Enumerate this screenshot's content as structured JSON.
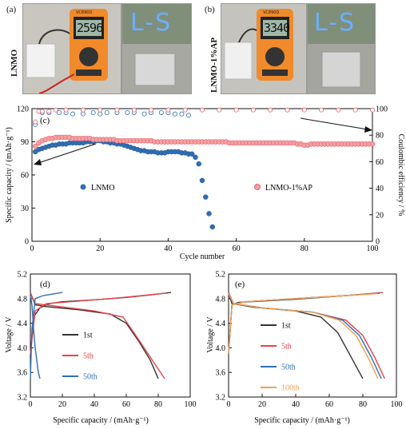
{
  "panel_a": {
    "label": "(a)",
    "side_label": "LNMO",
    "meter_reading": "2596",
    "meter_brand": "VC890D",
    "led_text": "L-S"
  },
  "panel_b": {
    "label": "(b)",
    "side_label": "LNMO-1%AP",
    "meter_reading": "3340",
    "meter_brand": "VC890D",
    "led_text": "L-S"
  },
  "panel_c": {
    "label": "(c)",
    "xlabel": "Cycle number",
    "ylabel_left": "Specific capacity / (mAh·g⁻¹)",
    "ylabel_right": "Coulombic efficiency / %",
    "legend_lnmo": "LNMO",
    "legend_ap": "LNMO-1%AP",
    "x_ticks": [
      "0",
      "20",
      "40",
      "60",
      "80",
      "100"
    ],
    "y_left_ticks": [
      "0",
      "30",
      "60",
      "90",
      "120"
    ],
    "y_right_ticks": [
      "0",
      "20",
      "40",
      "60",
      "80",
      "100"
    ],
    "colors": {
      "lnmo": "#2f6fb5",
      "ap": "#e8646a"
    }
  },
  "panel_d": {
    "label": "(d)",
    "xlabel": "Specific capacity / (mAh·g⁻¹)",
    "ylabel": "Voltage / V",
    "x_ticks": [
      "0",
      "20",
      "40",
      "60",
      "80",
      "100"
    ],
    "y_ticks": [
      "3.2",
      "3.6",
      "4.0",
      "4.4",
      "4.8",
      "5.2"
    ],
    "legend": [
      {
        "label": "1st",
        "color": "#333333"
      },
      {
        "label": "5th",
        "color": "#e8434b"
      },
      {
        "label": "50th",
        "color": "#2f6fb5"
      }
    ]
  },
  "panel_e": {
    "label": "(e)",
    "xlabel": "Specific capacity / (mAh·g⁻¹)",
    "ylabel": "Voltage / V",
    "x_ticks": [
      "0",
      "20",
      "40",
      "60",
      "80",
      "100"
    ],
    "y_ticks": [
      "3.2",
      "3.6",
      "4.0",
      "4.4",
      "4.8",
      "5.2"
    ],
    "legend": [
      {
        "label": "1st",
        "color": "#333333"
      },
      {
        "label": "5th",
        "color": "#e8434b"
      },
      {
        "label": "50th",
        "color": "#2f6fb5"
      },
      {
        "label": "100th",
        "color": "#f0a050"
      }
    ]
  },
  "chart_data": [
    {
      "type": "scatter",
      "id": "cycling",
      "xlabel": "Cycle number",
      "ylabel": "Specific capacity / (mAh·g⁻¹)",
      "y2label": "Coulombic efficiency / %",
      "xlim": [
        0,
        100
      ],
      "ylim": [
        0,
        120
      ],
      "y2lim": [
        0,
        100
      ],
      "series": [
        {
          "name": "LNMO",
          "axis": "left",
          "x": [
            1,
            2,
            3,
            4,
            5,
            6,
            7,
            8,
            9,
            10,
            11,
            12,
            13,
            14,
            15,
            16,
            17,
            18,
            19,
            20,
            21,
            22,
            23,
            24,
            25,
            26,
            27,
            28,
            29,
            30,
            31,
            32,
            33,
            34,
            35,
            36,
            37,
            38,
            39,
            40,
            41,
            42,
            43,
            44,
            45,
            46,
            47,
            48,
            49,
            50,
            51,
            52,
            53
          ],
          "y": [
            81,
            83,
            84,
            85,
            86,
            87,
            87,
            88,
            88,
            88,
            89,
            89,
            89,
            89,
            89,
            90,
            90,
            90,
            91,
            91,
            90,
            90,
            89,
            89,
            88,
            88,
            87,
            86,
            85,
            84,
            83,
            82,
            82,
            81,
            81,
            81,
            80,
            80,
            80,
            81,
            81,
            81,
            81,
            80,
            80,
            79,
            79,
            76,
            70,
            55,
            40,
            25,
            13
          ]
        },
        {
          "name": "LNMO-1%AP",
          "axis": "left",
          "x": [
            1,
            2,
            3,
            4,
            5,
            6,
            7,
            8,
            9,
            10,
            11,
            12,
            13,
            14,
            15,
            16,
            17,
            18,
            19,
            20,
            21,
            22,
            23,
            24,
            25,
            26,
            27,
            28,
            29,
            30,
            31,
            32,
            33,
            34,
            35,
            36,
            37,
            38,
            39,
            40,
            41,
            42,
            43,
            44,
            45,
            46,
            47,
            48,
            49,
            50,
            51,
            52,
            53,
            54,
            55,
            56,
            57,
            58,
            59,
            60,
            61,
            62,
            63,
            64,
            65,
            66,
            67,
            68,
            69,
            70,
            71,
            72,
            73,
            74,
            75,
            76,
            77,
            78,
            79,
            80,
            81,
            82,
            83,
            84,
            85,
            86,
            87,
            88,
            89,
            90,
            91,
            92,
            93,
            94,
            95,
            96,
            97,
            98,
            99,
            100
          ],
          "y": [
            86,
            89,
            91,
            92,
            93,
            93,
            94,
            94,
            94,
            94,
            94,
            93,
            93,
            93,
            93,
            93,
            93,
            92,
            92,
            92,
            92,
            92,
            92,
            92,
            91,
            91,
            91,
            91,
            91,
            91,
            91,
            91,
            91,
            91,
            91,
            90,
            90,
            90,
            90,
            90,
            90,
            90,
            90,
            90,
            90,
            90,
            90,
            90,
            90,
            90,
            90,
            90,
            90,
            90,
            90,
            90,
            90,
            89,
            89,
            89,
            89,
            89,
            89,
            89,
            89,
            89,
            89,
            89,
            89,
            89,
            89,
            89,
            89,
            89,
            89,
            89,
            89,
            88,
            88,
            87,
            87,
            88,
            88,
            88,
            88,
            88,
            88,
            88,
            88,
            88,
            88,
            88,
            88,
            88,
            88,
            88,
            88,
            88,
            88,
            88
          ]
        },
        {
          "name": "LNMO CE",
          "axis": "right",
          "x": [
            1,
            3,
            5,
            8,
            10,
            12,
            15,
            18,
            20,
            22,
            25,
            28,
            30,
            33,
            35,
            38,
            40,
            42,
            44,
            46
          ],
          "y": [
            88,
            97,
            97,
            97,
            97,
            96,
            96,
            97,
            96,
            97,
            97,
            97,
            97,
            96,
            97,
            97,
            97,
            96,
            96,
            95
          ]
        },
        {
          "name": "LNMO-1%AP CE",
          "axis": "right",
          "x": [
            1,
            2,
            3,
            5,
            7,
            10,
            15,
            20,
            25,
            30,
            35,
            40,
            45,
            50,
            55,
            60,
            65,
            70,
            75,
            80,
            85,
            90,
            95,
            100
          ],
          "y": [
            90,
            98,
            98,
            98,
            99,
            99,
            99,
            99,
            99,
            99,
            99,
            99,
            99,
            99,
            99,
            99,
            99,
            99,
            99,
            99,
            99,
            99,
            99,
            99
          ]
        }
      ]
    },
    {
      "type": "line",
      "id": "profiles_lnmo",
      "xlabel": "Specific capacity / (mAh·g⁻¹)",
      "ylabel": "Voltage / V",
      "xlim": [
        0,
        100
      ],
      "ylim": [
        3.2,
        5.2
      ],
      "series": [
        {
          "name": "1st",
          "charge": [
            [
              0,
              3.85
            ],
            [
              2,
              4.5
            ],
            [
              6,
              4.65
            ],
            [
              12,
              4.72
            ],
            [
              20,
              4.75
            ],
            [
              40,
              4.78
            ],
            [
              60,
              4.82
            ],
            [
              75,
              4.86
            ],
            [
              88,
              4.9
            ]
          ],
          "discharge": [
            [
              0,
              4.9
            ],
            [
              3,
              4.7
            ],
            [
              10,
              4.67
            ],
            [
              30,
              4.62
            ],
            [
              50,
              4.55
            ],
            [
              60,
              4.4
            ],
            [
              68,
              4.1
            ],
            [
              75,
              3.8
            ],
            [
              80,
              3.5
            ]
          ]
        },
        {
          "name": "5th",
          "charge": [
            [
              0,
              3.9
            ],
            [
              3,
              4.6
            ],
            [
              10,
              4.72
            ],
            [
              30,
              4.76
            ],
            [
              50,
              4.8
            ],
            [
              70,
              4.85
            ],
            [
              85,
              4.89
            ]
          ],
          "discharge": [
            [
              0,
              4.89
            ],
            [
              3,
              4.72
            ],
            [
              15,
              4.68
            ],
            [
              40,
              4.6
            ],
            [
              58,
              4.5
            ],
            [
              66,
              4.2
            ],
            [
              75,
              3.85
            ],
            [
              84,
              3.5
            ]
          ]
        },
        {
          "name": "50th",
          "charge": [
            [
              0,
              3.5
            ],
            [
              1,
              4.3
            ],
            [
              3,
              4.8
            ],
            [
              8,
              4.85
            ],
            [
              20,
              4.9
            ]
          ],
          "discharge": [
            [
              0,
              4.85
            ],
            [
              1,
              4.7
            ],
            [
              2,
              4.3
            ],
            [
              3,
              4.0
            ],
            [
              4,
              3.8
            ],
            [
              5,
              3.6
            ],
            [
              6,
              3.5
            ]
          ]
        }
      ]
    },
    {
      "type": "line",
      "id": "profiles_ap",
      "xlabel": "Specific capacity / (mAh·g⁻¹)",
      "ylabel": "Voltage / V",
      "xlim": [
        0,
        100
      ],
      "ylim": [
        3.2,
        5.2
      ],
      "series": [
        {
          "name": "1st",
          "charge": [
            [
              0,
              3.9
            ],
            [
              2,
              4.7
            ],
            [
              6,
              4.74
            ],
            [
              20,
              4.76
            ],
            [
              40,
              4.79
            ],
            [
              60,
              4.83
            ],
            [
              80,
              4.87
            ],
            [
              90,
              4.89
            ]
          ],
          "discharge": [
            [
              0,
              4.89
            ],
            [
              2,
              4.72
            ],
            [
              15,
              4.66
            ],
            [
              40,
              4.6
            ],
            [
              55,
              4.5
            ],
            [
              65,
              4.25
            ],
            [
              72,
              3.9
            ],
            [
              80,
              3.5
            ]
          ]
        },
        {
          "name": "5th",
          "charge": [
            [
              0,
              3.9
            ],
            [
              2,
              4.7
            ],
            [
              10,
              4.75
            ],
            [
              40,
              4.8
            ],
            [
              70,
              4.85
            ],
            [
              92,
              4.9
            ]
          ],
          "discharge": [
            [
              0,
              4.9
            ],
            [
              3,
              4.72
            ],
            [
              20,
              4.65
            ],
            [
              50,
              4.58
            ],
            [
              70,
              4.45
            ],
            [
              80,
              4.2
            ],
            [
              87,
              3.85
            ],
            [
              93,
              3.5
            ]
          ]
        },
        {
          "name": "50th",
          "charge": [
            [
              0,
              3.9
            ],
            [
              2,
              4.7
            ],
            [
              10,
              4.75
            ],
            [
              40,
              4.8
            ],
            [
              70,
              4.85
            ],
            [
              90,
              4.89
            ]
          ],
          "discharge": [
            [
              0,
              4.89
            ],
            [
              3,
              4.72
            ],
            [
              20,
              4.65
            ],
            [
              50,
              4.58
            ],
            [
              68,
              4.45
            ],
            [
              78,
              4.2
            ],
            [
              85,
              3.85
            ],
            [
              91,
              3.5
            ]
          ]
        },
        {
          "name": "100th",
          "charge": [
            [
              0,
              3.9
            ],
            [
              2,
              4.7
            ],
            [
              10,
              4.75
            ],
            [
              40,
              4.8
            ],
            [
              70,
              4.85
            ],
            [
              89,
              4.88
            ]
          ],
          "discharge": [
            [
              0,
              4.88
            ],
            [
              3,
              4.72
            ],
            [
              20,
              4.65
            ],
            [
              50,
              4.58
            ],
            [
              66,
              4.45
            ],
            [
              76,
              4.2
            ],
            [
              83,
              3.85
            ],
            [
              89,
              3.5
            ]
          ]
        }
      ]
    }
  ]
}
